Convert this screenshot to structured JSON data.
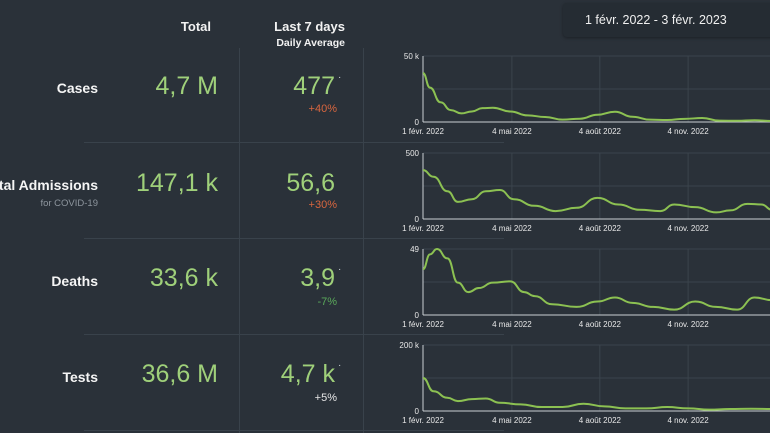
{
  "header": {
    "total_label": "Total",
    "last7_label": "Last 7 days",
    "daily_avg_label": "Daily Average",
    "date_range": "1 févr. 2022 - 3 févr. 2023"
  },
  "colors": {
    "background": "#2a3139",
    "value_green": "#9fd07a",
    "line_green": "#8cc152",
    "increase": "#d9663f",
    "decrease": "#5aa95a",
    "neutral": "#e6e6e6"
  },
  "rows": [
    {
      "label": "Cases",
      "sub": "",
      "total": "4,7 M",
      "avg": "477",
      "dot": "·",
      "change": "+40%",
      "trend": "up"
    },
    {
      "label": "Hospital Admissions",
      "sub": "for COVID-19",
      "total": "147,1 k",
      "avg": "56,6",
      "dot": "",
      "change": "+30%",
      "trend": "up"
    },
    {
      "label": "Deaths",
      "sub": "",
      "total": "33,6 k",
      "avg": "3,9",
      "dot": "·",
      "change": "-7%",
      "trend": "down"
    },
    {
      "label": "Tests",
      "sub": "",
      "total": "36,6 M",
      "avg": "4,7 k",
      "dot": "·",
      "change": "+5%",
      "trend": "neutral"
    }
  ],
  "chart_data": [
    {
      "type": "line",
      "title": "Cases",
      "x_ticks": [
        "1 févr. 2022",
        "4 mai 2022",
        "4 août 2022",
        "4 nov. 2022"
      ],
      "y_ticks": [
        "0",
        "50 k"
      ],
      "ylim": [
        0,
        50000
      ],
      "grid": true,
      "x": [
        0,
        0.02,
        0.05,
        0.08,
        0.11,
        0.14,
        0.17,
        0.2,
        0.25,
        0.3,
        0.35,
        0.4,
        0.45,
        0.5,
        0.55,
        0.6,
        0.65,
        0.7,
        0.75,
        0.8,
        0.85,
        0.9,
        0.95,
        1.0
      ],
      "values": [
        37000,
        26000,
        15000,
        9000,
        6500,
        8000,
        10500,
        10800,
        8000,
        5000,
        3800,
        1800,
        2500,
        5500,
        7800,
        4000,
        1800,
        1500,
        2400,
        3000,
        1000,
        900,
        1300,
        800
      ]
    },
    {
      "type": "line",
      "title": "Hospital Admissions",
      "x_ticks": [
        "1 févr. 2022",
        "4 mai 2022",
        "4 août 2022",
        "4 nov. 2022"
      ],
      "y_ticks": [
        "0",
        "500"
      ],
      "ylim": [
        0,
        500
      ],
      "grid": true,
      "x": [
        0,
        0.03,
        0.07,
        0.1,
        0.14,
        0.18,
        0.22,
        0.26,
        0.32,
        0.38,
        0.44,
        0.5,
        0.56,
        0.62,
        0.68,
        0.72,
        0.78,
        0.84,
        0.88,
        0.93,
        0.97,
        1.0
      ],
      "values": [
        370,
        320,
        210,
        130,
        150,
        210,
        220,
        150,
        100,
        60,
        85,
        160,
        110,
        70,
        60,
        110,
        90,
        50,
        65,
        115,
        110,
        70
      ]
    },
    {
      "type": "line",
      "title": "Deaths",
      "x_ticks": [
        "1 févr. 2022",
        "4 mai 2022",
        "4 août 2022",
        "4 nov. 2022"
      ],
      "y_ticks": [
        "0",
        "49"
      ],
      "ylim": [
        0,
        49
      ],
      "grid": true,
      "x": [
        0,
        0.02,
        0.04,
        0.07,
        0.1,
        0.13,
        0.16,
        0.2,
        0.25,
        0.29,
        0.32,
        0.37,
        0.44,
        0.5,
        0.55,
        0.6,
        0.66,
        0.72,
        0.78,
        0.84,
        0.9,
        0.95,
        1.0
      ],
      "values": [
        34,
        45,
        49,
        42,
        24,
        17,
        20,
        24,
        25,
        17,
        14,
        8,
        6,
        10,
        13,
        9,
        6,
        4,
        10,
        6,
        4,
        13,
        11
      ]
    },
    {
      "type": "line",
      "title": "Tests",
      "x_ticks": [
        "1 févr. 2022",
        "4 mai 2022",
        "4 août 2022",
        "4 nov. 2022"
      ],
      "y_ticks": [
        "0",
        "200 k"
      ],
      "ylim": [
        0,
        200000
      ],
      "grid": true,
      "x": [
        0,
        0.03,
        0.07,
        0.1,
        0.14,
        0.18,
        0.22,
        0.28,
        0.34,
        0.4,
        0.46,
        0.52,
        0.58,
        0.64,
        0.7,
        0.76,
        0.82,
        0.88,
        0.94,
        1.0
      ],
      "values": [
        100000,
        60000,
        40000,
        30000,
        36000,
        38000,
        25000,
        20000,
        12000,
        12000,
        22000,
        14000,
        8000,
        8000,
        12000,
        8000,
        4000,
        6000,
        7000,
        6000
      ]
    }
  ]
}
